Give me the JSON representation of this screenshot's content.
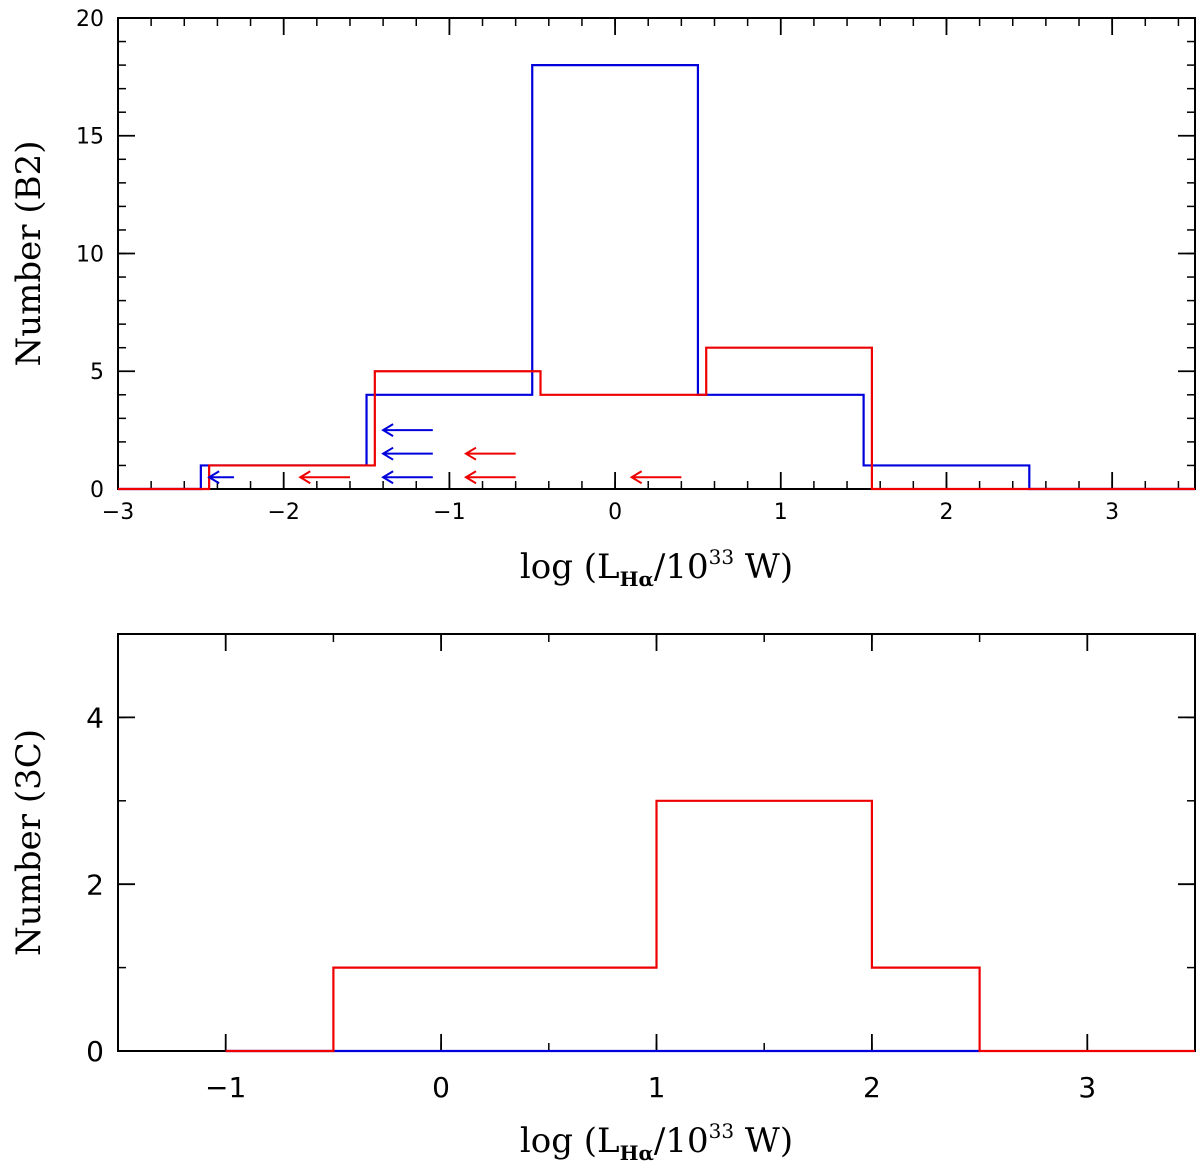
{
  "chart_data": [
    {
      "type": "histogram",
      "xlabel": {
        "prefix": "log (L",
        "subscript": "Hα",
        "middle": "/10",
        "superscript": "33",
        "suffix": " W)"
      },
      "ylabel": "Number (B2)",
      "xlim": [
        -3,
        3.5
      ],
      "ylim": [
        0,
        20
      ],
      "x_ticks": [
        -3,
        -2,
        -1,
        0,
        1,
        2,
        3
      ],
      "x_tick_labels": [
        "−3",
        "−2",
        "−1",
        "0",
        "1",
        "2",
        "3"
      ],
      "y_ticks": [
        0,
        5,
        10,
        15,
        20
      ],
      "y_tick_labels": [
        "0",
        "5",
        "10",
        "15",
        "20"
      ],
      "x_minor_step": 0.2,
      "y_minor_step": 1,
      "series": [
        {
          "color": "#0000dd",
          "edges": [
            -3,
            -2.5,
            -1.5,
            -0.5,
            0.5,
            1.5,
            2.5,
            3.5
          ],
          "counts": [
            0,
            1,
            4,
            18,
            4,
            1,
            0
          ]
        },
        {
          "color": "#ee0000",
          "edges": [
            -3,
            -2.45,
            -1.45,
            -0.45,
            0.55,
            1.55,
            2.55,
            3.5
          ],
          "counts": [
            0,
            1,
            5,
            4,
            6,
            0,
            0
          ]
        }
      ],
      "upper_limit_arrows": [
        {
          "color": "#0000dd",
          "x_from": -2.3,
          "x_to": -2.45,
          "y": 0.5
        },
        {
          "color": "#0000dd",
          "x_from": -1.1,
          "x_to": -1.4,
          "y": 0.5
        },
        {
          "color": "#0000dd",
          "x_from": -1.1,
          "x_to": -1.4,
          "y": 1.5
        },
        {
          "color": "#0000dd",
          "x_from": -1.1,
          "x_to": -1.4,
          "y": 2.5
        },
        {
          "color": "#ee0000",
          "x_from": -1.6,
          "x_to": -1.9,
          "y": 0.5
        },
        {
          "color": "#ee0000",
          "x_from": -0.6,
          "x_to": -0.9,
          "y": 0.5
        },
        {
          "color": "#ee0000",
          "x_from": -0.6,
          "x_to": -0.9,
          "y": 1.5
        },
        {
          "color": "#ee0000",
          "x_from": 0.4,
          "x_to": 0.1,
          "y": 0.5
        }
      ]
    },
    {
      "type": "histogram",
      "xlabel": {
        "prefix": "log (L",
        "subscript": "Hα",
        "middle": "/10",
        "superscript": "33",
        "suffix": " W)"
      },
      "ylabel": "Number (3C)",
      "xlim": [
        -1.5,
        3.5
      ],
      "ylim": [
        0,
        5
      ],
      "x_ticks": [
        -1,
        0,
        1,
        2,
        3
      ],
      "x_tick_labels": [
        "−1",
        "0",
        "1",
        "2",
        "3"
      ],
      "y_ticks": [
        0,
        2,
        4
      ],
      "y_tick_labels": [
        "0",
        "2",
        "4"
      ],
      "x_minor_step": 0.5,
      "y_minor_step": 1,
      "series": [
        {
          "color": "#0000dd",
          "edges": [
            -1,
            2.5
          ],
          "counts": [
            0
          ]
        },
        {
          "color": "#ee0000",
          "edges": [
            -1,
            -0.5,
            1,
            2,
            2.5,
            3.5
          ],
          "counts": [
            0,
            1,
            3,
            1,
            0
          ]
        }
      ],
      "upper_limit_arrows": []
    }
  ]
}
